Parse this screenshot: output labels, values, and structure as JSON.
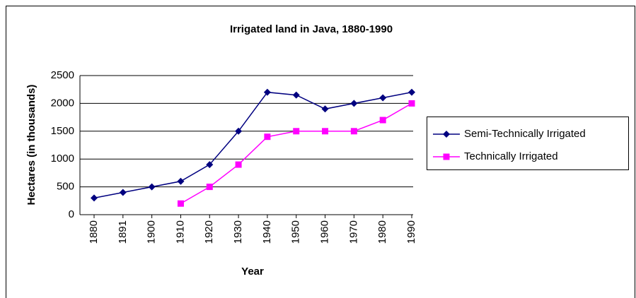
{
  "chart_data": {
    "type": "line",
    "title": "Irrigated land in Java, 1880-1990",
    "x_label": "Year",
    "y_label": "Hectares (in thousands)",
    "categories": [
      "1880",
      "1891",
      "1900",
      "1910",
      "1920",
      "1930",
      "1940",
      "1950",
      "1960",
      "1970",
      "1980",
      "1990"
    ],
    "series": [
      {
        "name": "Semi-Technically Irrigated",
        "color": "#000080",
        "marker": "diamond",
        "values": [
          300,
          400,
          500,
          600,
          900,
          1500,
          2200,
          2150,
          1900,
          2000,
          2100,
          2200
        ]
      },
      {
        "name": "Technically Irrigated",
        "color": "#ff00ff",
        "marker": "square",
        "values": [
          null,
          null,
          null,
          200,
          500,
          900,
          1400,
          1500,
          1500,
          1500,
          1700,
          2000
        ]
      }
    ],
    "ylim": [
      0,
      2500
    ],
    "yticks": [
      0,
      500,
      1000,
      1500,
      2000,
      2500
    ],
    "grid": true,
    "legend": "right"
  }
}
